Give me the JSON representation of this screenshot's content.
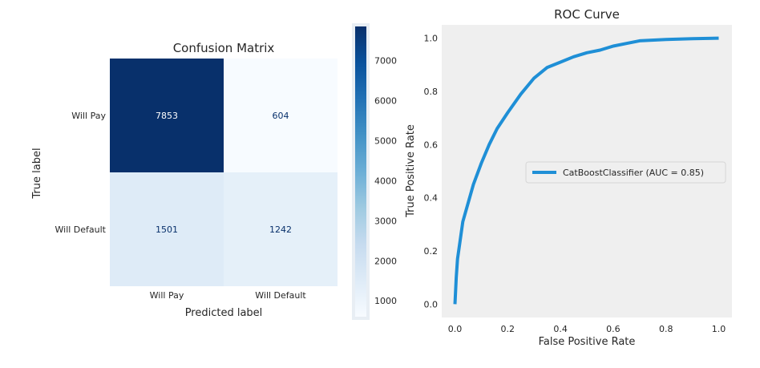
{
  "chart_data": [
    {
      "type": "heatmap",
      "title": "Confusion Matrix",
      "xlabel": "Predicted label",
      "ylabel": "True label",
      "x_categories": [
        "Will Pay",
        "Will Default"
      ],
      "y_categories": [
        "Will Pay",
        "Will Default"
      ],
      "values": [
        [
          7853,
          604
        ],
        [
          1501,
          1242
        ]
      ],
      "colormap": "Blues",
      "colorbar": {
        "range": [
          604,
          7853
        ],
        "ticks": [
          "1000",
          "2000",
          "3000",
          "4000",
          "5000",
          "6000",
          "7000"
        ]
      },
      "grid": false
    },
    {
      "type": "line",
      "title": "ROC Curve",
      "xlabel": "False Positive Rate",
      "ylabel": "True Positive Rate",
      "xlim": [
        -0.05,
        1.05
      ],
      "ylim": [
        -0.05,
        1.05
      ],
      "xticks": [
        "0.0",
        "0.2",
        "0.4",
        "0.6",
        "0.8",
        "1.0"
      ],
      "yticks": [
        "0.0",
        "0.2",
        "0.4",
        "0.6",
        "0.8",
        "1.0"
      ],
      "grid": false,
      "background": "#efefef",
      "legend_position": "center-right",
      "series": [
        {
          "name": "CatBoostClassifier (AUC = 0.85)",
          "color": "#1f8fd6",
          "x": [
            0.0,
            0.005,
            0.01,
            0.02,
            0.03,
            0.05,
            0.07,
            0.1,
            0.13,
            0.16,
            0.2,
            0.25,
            0.3,
            0.35,
            0.4,
            0.45,
            0.5,
            0.55,
            0.6,
            0.65,
            0.7,
            0.8,
            0.9,
            1.0
          ],
          "y": [
            0.0,
            0.1,
            0.17,
            0.24,
            0.31,
            0.38,
            0.45,
            0.53,
            0.6,
            0.66,
            0.72,
            0.79,
            0.85,
            0.89,
            0.91,
            0.93,
            0.945,
            0.955,
            0.97,
            0.98,
            0.99,
            0.995,
            0.998,
            1.0
          ]
        }
      ]
    }
  ]
}
